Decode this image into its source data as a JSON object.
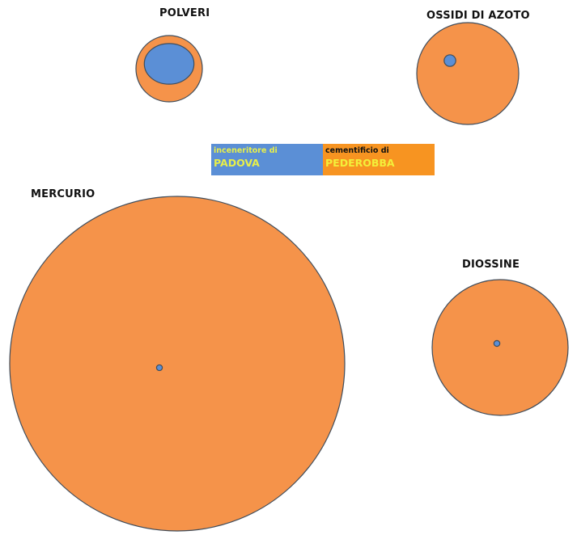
{
  "chart_data": {
    "type": "proportional-area circles",
    "series": [
      {
        "name": "inceneritore di PADOVA",
        "color": "#5b8fd6"
      },
      {
        "name": "cementificio di PEDEROBBA",
        "color": "#f5934a"
      }
    ],
    "panels": [
      {
        "title": "POLVERI",
        "inceneritore": 0.56,
        "cementificio": 1
      },
      {
        "title": "OSSIDI DI AZOTO",
        "inceneritore": 0.013,
        "cementificio": 1
      },
      {
        "title": "MERCURIO",
        "inceneritore": 0.0003,
        "cementificio": 1
      },
      {
        "title": "DIOSSINE",
        "inceneritore": 0.0019,
        "cementificio": 1
      }
    ]
  },
  "legend": {
    "inceneritore": {
      "line1": "inceneritore di",
      "line2": "PADOVA",
      "bg": "#5b8fd6",
      "line1_color": "#e8ef4a",
      "line2_color": "#e8ef4a"
    },
    "cementificio": {
      "line1": "cementificio di",
      "line2": "PEDEROBBA",
      "bg": "#f79421",
      "line1_color": "#111111",
      "line2_color": "#f3ef3a"
    }
  },
  "colors": {
    "outer_fill": "#f5934a",
    "inner_fill": "#5b8fd6",
    "stroke": "#3f4d5c"
  }
}
